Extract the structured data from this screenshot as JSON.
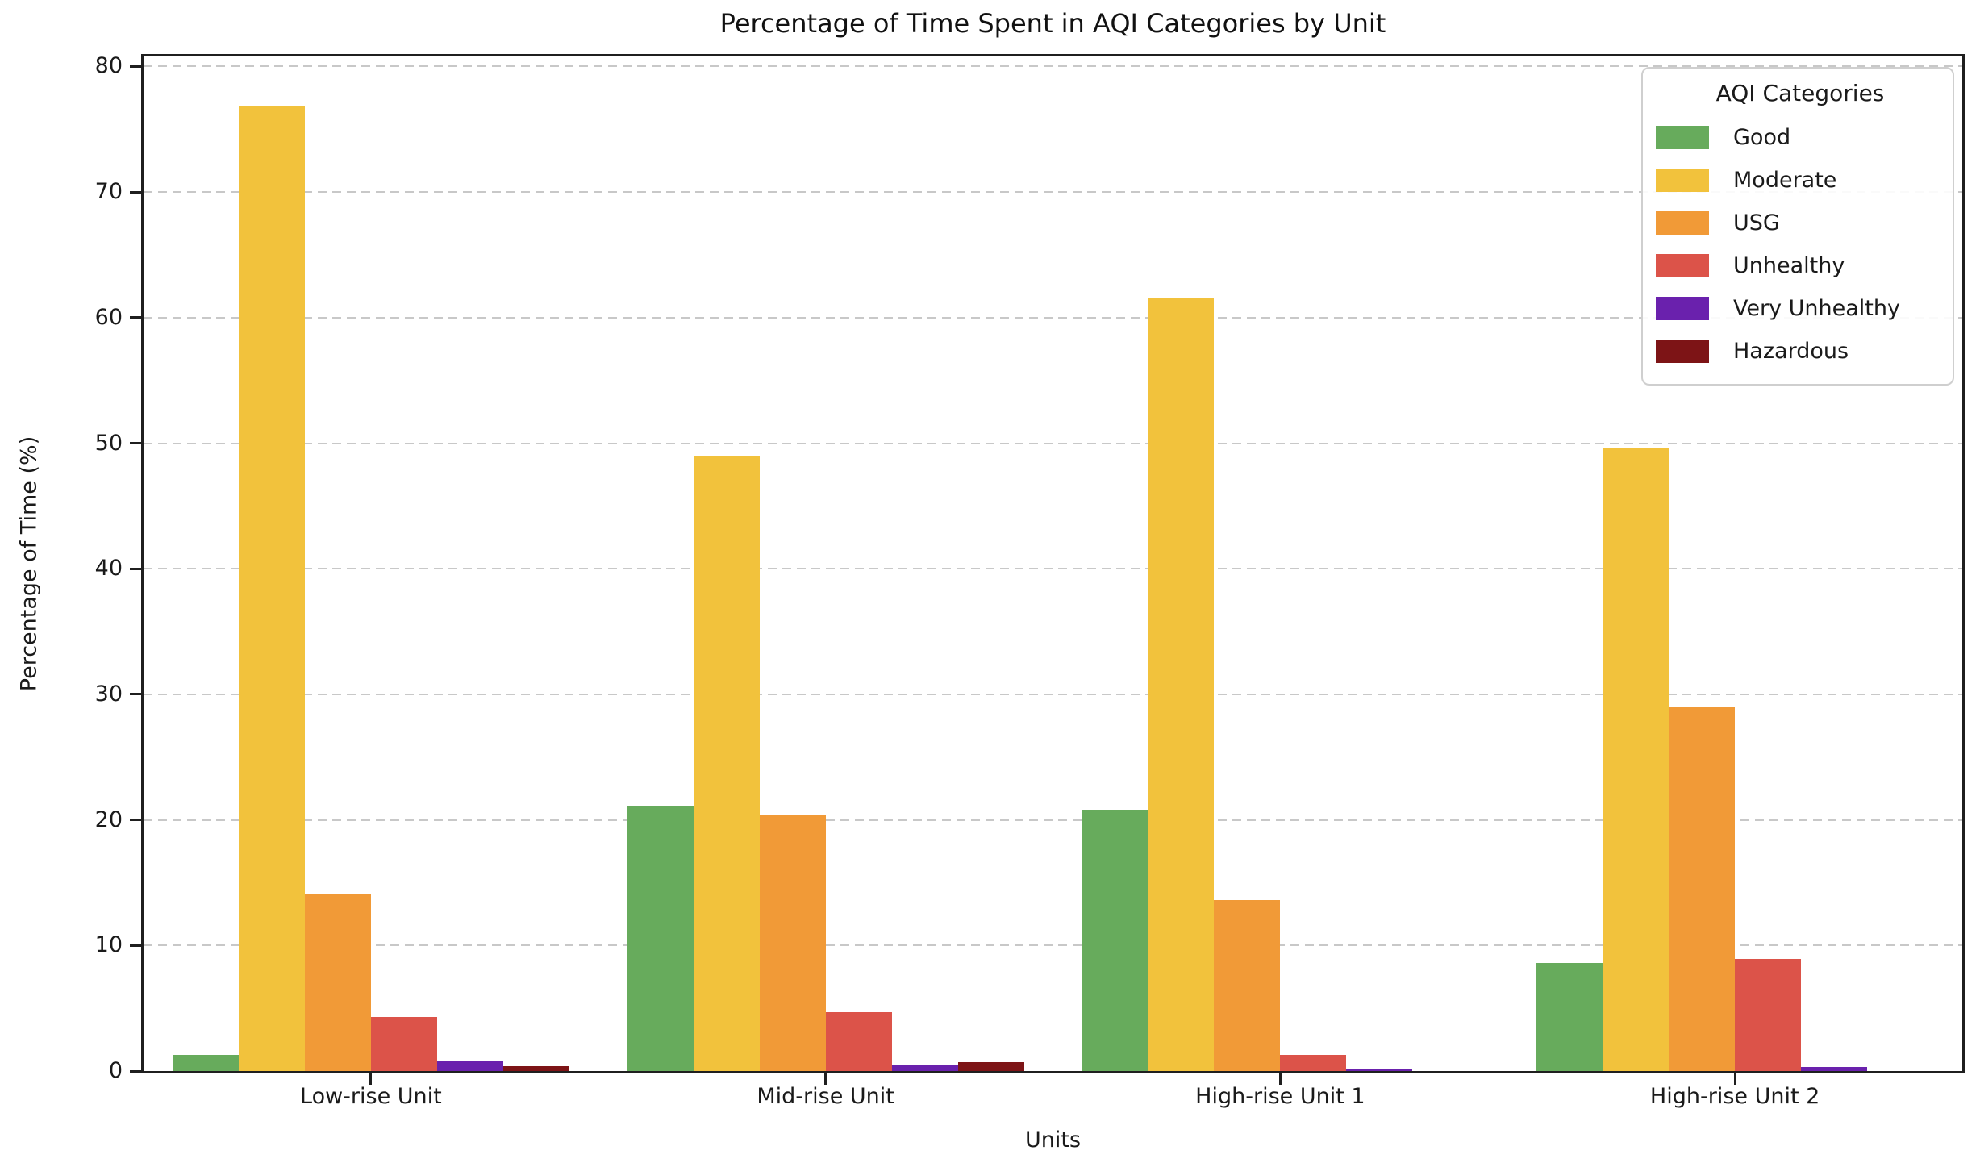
{
  "chart_data": {
    "type": "bar",
    "title": "Percentage of Time Spent in AQI Categories by Unit",
    "xlabel": "Units",
    "ylabel": "Percentage of Time (%)",
    "legend_title": "AQI Categories",
    "legend_position": "upper right",
    "grid": "horizontal dashed",
    "ylim": [
      0,
      80.8
    ],
    "yticks": [
      0,
      10,
      20,
      30,
      40,
      50,
      60,
      70,
      80
    ],
    "categories": [
      "Low-rise Unit",
      "Mid-rise Unit",
      "High-rise Unit 1",
      "High-rise Unit 2"
    ],
    "series": [
      {
        "name": "Good",
        "color": "#67ab5c",
        "values": [
          1.3,
          21.1,
          20.8,
          8.6
        ]
      },
      {
        "name": "Moderate",
        "color": "#f2c23c",
        "values": [
          76.9,
          49.0,
          61.6,
          49.6
        ]
      },
      {
        "name": "USG",
        "color": "#f19a37",
        "values": [
          14.1,
          20.4,
          13.6,
          29.0
        ]
      },
      {
        "name": "Unhealthy",
        "color": "#dc5349",
        "values": [
          4.3,
          4.7,
          1.3,
          8.9
        ]
      },
      {
        "name": "Very Unhealthy",
        "color": "#6a21ad",
        "values": [
          0.8,
          0.5,
          0.2,
          0.3
        ]
      },
      {
        "name": "Hazardous",
        "color": "#7d1416",
        "values": [
          0.4,
          0.7,
          0.0,
          0.0
        ]
      }
    ]
  }
}
